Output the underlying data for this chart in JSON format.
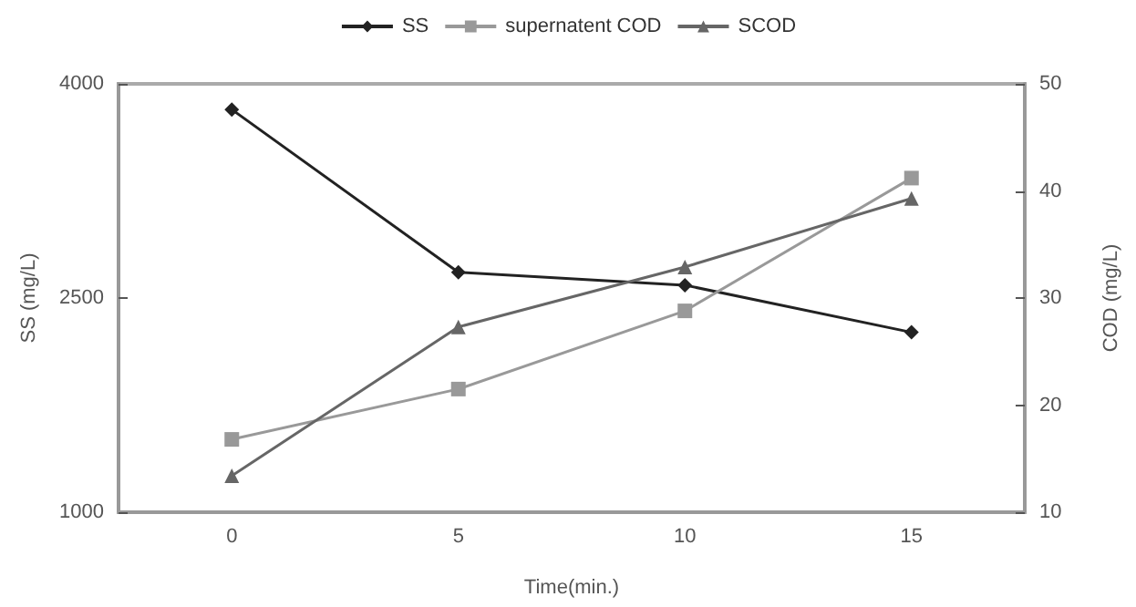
{
  "chart_data": {
    "type": "line",
    "categories": [
      "0",
      "5",
      "10",
      "15"
    ],
    "xlabel": "Time(min.)",
    "ylabel": "SS (mg/L)",
    "y2label": "COD (mg/L)",
    "ylim": [
      1000,
      4000
    ],
    "yticks": [
      1000,
      2500,
      4000
    ],
    "y2lim": [
      10,
      50
    ],
    "y2ticks": [
      10,
      20,
      30,
      40,
      50
    ],
    "legend": "top",
    "grid": false,
    "series": [
      {
        "name": "SS",
        "color": "#222222",
        "marker": "diamond",
        "values": [
          3820,
          2680,
          2590,
          2260
        ]
      },
      {
        "name": "supernatent COD",
        "color": "#999999",
        "marker": "square",
        "axis": "y2",
        "values": [
          16.8,
          21.5,
          28.8,
          41.2
        ]
      },
      {
        "name": "SCOD",
        "color": "#666666",
        "marker": "triangle",
        "axis": "y2",
        "values": [
          13.4,
          27.3,
          32.9,
          39.3
        ]
      }
    ]
  }
}
